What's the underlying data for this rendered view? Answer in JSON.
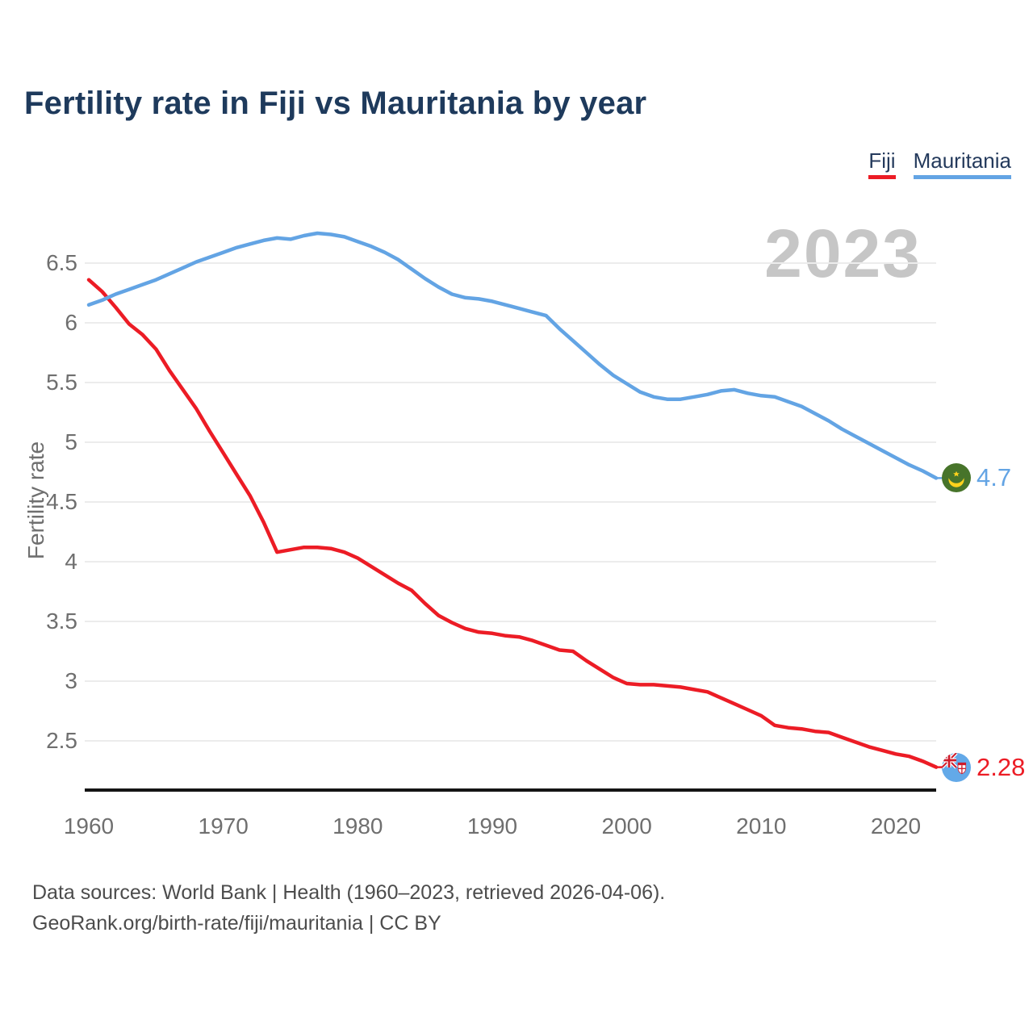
{
  "title": "Fertility rate in Fiji vs Mauritania by year",
  "watermark": {
    "text": "2023",
    "color": "#c6c6c6"
  },
  "legend": {
    "items": [
      {
        "label": "Fiji",
        "color": "#ec1c25"
      },
      {
        "label": "Mauritania",
        "color": "#63a4e4"
      }
    ]
  },
  "y_axis": {
    "label": "Fertility rate",
    "ticks": [
      "6.5",
      "6",
      "5.5",
      "5",
      "4.5",
      "4",
      "3.5",
      "3",
      "2.5"
    ]
  },
  "x_axis": {
    "ticks": [
      "1960",
      "1970",
      "1980",
      "1990",
      "2000",
      "2010",
      "2020"
    ]
  },
  "series_end_labels": {
    "fiji": "2.28",
    "mauritania": "4.7"
  },
  "footer": {
    "line1": "Data sources: World Bank | Health (1960–2023, retrieved 2026-04-06).",
    "line2": "GeoRank.org/birth-rate/fiji/mauritania | CC BY"
  },
  "chart_data": {
    "type": "line",
    "title": "Fertility rate in Fiji vs Mauritania by year",
    "ylabel": "Fertility rate",
    "xlabel": "",
    "ylim": [
      2.09,
      6.81
    ],
    "xlim": [
      1960,
      2023
    ],
    "grid": true,
    "legend_position": "top-right",
    "x": [
      1960,
      1961,
      1962,
      1963,
      1964,
      1965,
      1966,
      1967,
      1968,
      1969,
      1970,
      1971,
      1972,
      1973,
      1974,
      1975,
      1976,
      1977,
      1978,
      1979,
      1980,
      1981,
      1982,
      1983,
      1984,
      1985,
      1986,
      1987,
      1988,
      1989,
      1990,
      1991,
      1992,
      1993,
      1994,
      1995,
      1996,
      1997,
      1998,
      1999,
      2000,
      2001,
      2002,
      2003,
      2004,
      2005,
      2006,
      2007,
      2008,
      2009,
      2010,
      2011,
      2012,
      2013,
      2014,
      2015,
      2016,
      2017,
      2018,
      2019,
      2020,
      2021,
      2022,
      2023
    ],
    "series": [
      {
        "name": "Fiji",
        "color": "#ec1c25",
        "end_label": "2.28",
        "values": [
          6.36,
          6.26,
          6.13,
          5.99,
          5.9,
          5.78,
          5.6,
          5.44,
          5.28,
          5.09,
          4.91,
          4.73,
          4.55,
          4.33,
          4.08,
          4.1,
          4.12,
          4.12,
          4.11,
          4.08,
          4.03,
          3.96,
          3.89,
          3.82,
          3.76,
          3.65,
          3.55,
          3.49,
          3.44,
          3.41,
          3.4,
          3.38,
          3.37,
          3.34,
          3.3,
          3.26,
          3.25,
          3.17,
          3.1,
          3.03,
          2.98,
          2.97,
          2.97,
          2.96,
          2.95,
          2.93,
          2.91,
          2.86,
          2.81,
          2.76,
          2.71,
          2.63,
          2.61,
          2.6,
          2.58,
          2.57,
          2.53,
          2.49,
          2.45,
          2.42,
          2.39,
          2.37,
          2.33,
          2.28
        ]
      },
      {
        "name": "Mauritania",
        "color": "#63a4e4",
        "end_label": "4.7",
        "values": [
          6.15,
          6.19,
          6.24,
          6.28,
          6.32,
          6.36,
          6.41,
          6.46,
          6.51,
          6.55,
          6.59,
          6.63,
          6.66,
          6.69,
          6.71,
          6.7,
          6.73,
          6.75,
          6.74,
          6.72,
          6.68,
          6.64,
          6.59,
          6.53,
          6.45,
          6.37,
          6.3,
          6.24,
          6.21,
          6.2,
          6.18,
          6.15,
          6.12,
          6.09,
          6.06,
          5.95,
          5.85,
          5.75,
          5.65,
          5.56,
          5.49,
          5.42,
          5.38,
          5.36,
          5.36,
          5.38,
          5.4,
          5.43,
          5.44,
          5.41,
          5.39,
          5.38,
          5.34,
          5.3,
          5.24,
          5.18,
          5.11,
          5.05,
          4.99,
          4.93,
          4.87,
          4.81,
          4.76,
          4.7
        ]
      }
    ]
  }
}
